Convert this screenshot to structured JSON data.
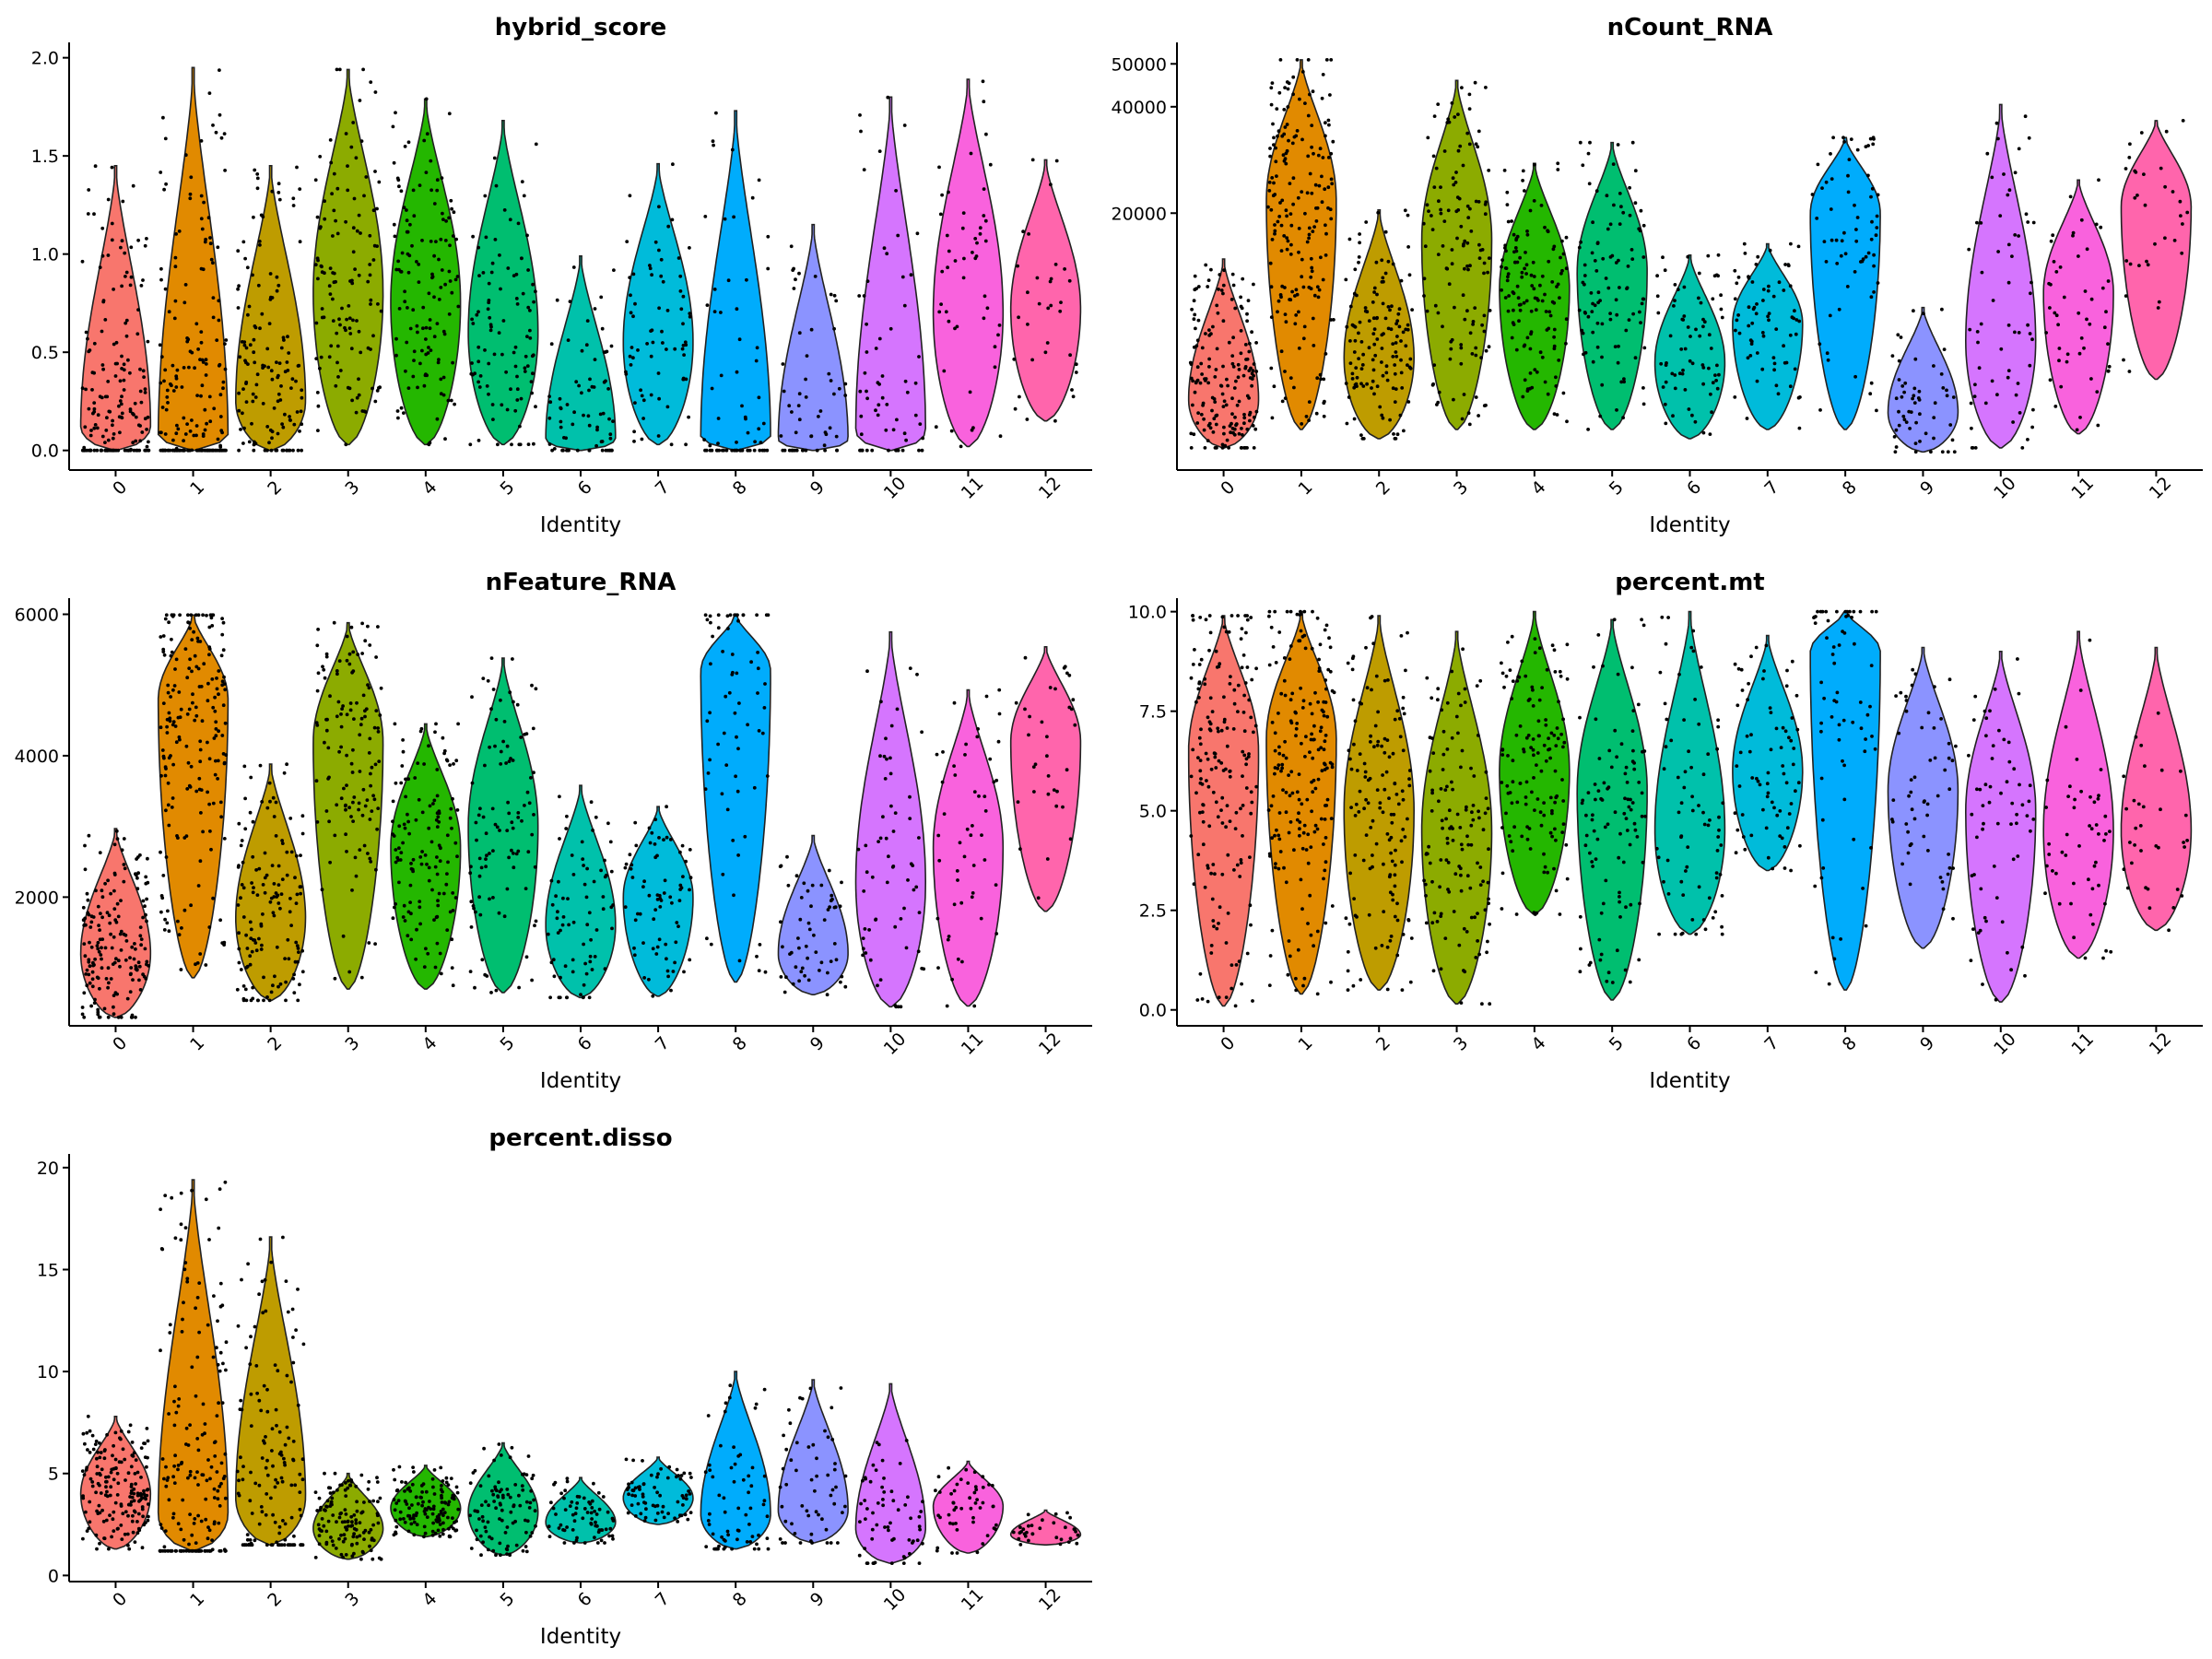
{
  "chart_data": [
    {
      "type": "violin",
      "title": "hybrid_score",
      "xlabel": "Identity",
      "ylabel": "",
      "categories": [
        "0",
        "1",
        "2",
        "3",
        "4",
        "5",
        "6",
        "7",
        "8",
        "9",
        "10",
        "11",
        "12"
      ],
      "ylim": [
        -0.1,
        2.05
      ],
      "yticks": [
        0.0,
        0.5,
        1.0,
        1.5,
        2.0
      ],
      "ytick_labels": [
        "0.0",
        "0.5",
        "1.0",
        "1.5",
        "2.0"
      ],
      "series": [
        {
          "name": "0",
          "min": 0.0,
          "max": 1.45,
          "median": 0.13,
          "mode": 0.12,
          "n": 320
        },
        {
          "name": "1",
          "min": 0.0,
          "max": 1.95,
          "median": 0.06,
          "mode": 0.05,
          "n": 350
        },
        {
          "name": "2",
          "min": 0.0,
          "max": 1.45,
          "median": 0.27,
          "mode": 0.25,
          "n": 250
        },
        {
          "name": "3",
          "min": 0.03,
          "max": 1.94,
          "median": 0.8,
          "mode": 0.8,
          "n": 230
        },
        {
          "name": "4",
          "min": 0.03,
          "max": 1.79,
          "median": 0.65,
          "mode": 0.75,
          "n": 240
        },
        {
          "name": "5",
          "min": 0.03,
          "max": 1.68,
          "median": 0.6,
          "mode": 0.6,
          "n": 180
        },
        {
          "name": "6",
          "min": 0.0,
          "max": 0.99,
          "median": 0.07,
          "mode": 0.06,
          "n": 130
        },
        {
          "name": "7",
          "min": 0.03,
          "max": 1.46,
          "median": 0.55,
          "mode": 0.55,
          "n": 130
        },
        {
          "name": "8",
          "min": 0.0,
          "max": 1.73,
          "median": 0.06,
          "mode": 0.06,
          "n": 120
        },
        {
          "name": "9",
          "min": 0.0,
          "max": 1.15,
          "median": 0.05,
          "mode": 0.05,
          "n": 100
        },
        {
          "name": "10",
          "min": 0.0,
          "max": 1.8,
          "median": 0.15,
          "mode": 0.1,
          "n": 110
        },
        {
          "name": "11",
          "min": 0.02,
          "max": 1.89,
          "median": 0.7,
          "mode": 0.7,
          "n": 90
        },
        {
          "name": "12",
          "min": 0.15,
          "max": 1.48,
          "median": 0.7,
          "mode": 0.72,
          "n": 60
        }
      ]
    },
    {
      "type": "violin",
      "title": "nCount_RNA",
      "xlabel": "Identity",
      "ylabel": "",
      "scale": "sqrt",
      "categories": [
        "0",
        "1",
        "2",
        "3",
        "4",
        "5",
        "6",
        "7",
        "8",
        "9",
        "10",
        "11",
        "12"
      ],
      "ylim": [
        0,
        54000
      ],
      "yticks": [
        20000,
        40000,
        50000
      ],
      "ytick_labels": [
        "20000",
        "40000",
        "50000"
      ],
      "series": [
        {
          "name": "0",
          "min": 150,
          "max": 13500,
          "median": 2000,
          "mode": 1500,
          "n": 320
        },
        {
          "name": "1",
          "min": 500,
          "max": 51000,
          "median": 22000,
          "mode": 22000,
          "n": 350
        },
        {
          "name": "2",
          "min": 300,
          "max": 20500,
          "median": 4000,
          "mode": 3800,
          "n": 250
        },
        {
          "name": "3",
          "min": 500,
          "max": 46000,
          "median": 17000,
          "mode": 16000,
          "n": 230
        },
        {
          "name": "4",
          "min": 500,
          "max": 28500,
          "median": 9500,
          "mode": 10000,
          "n": 240
        },
        {
          "name": "5",
          "min": 500,
          "max": 32500,
          "median": 11500,
          "mode": 12000,
          "n": 180
        },
        {
          "name": "6",
          "min": 300,
          "max": 14000,
          "median": 4000,
          "mode": 3500,
          "n": 130
        },
        {
          "name": "7",
          "min": 500,
          "max": 15500,
          "median": 6500,
          "mode": 6500,
          "n": 130
        },
        {
          "name": "8",
          "min": 500,
          "max": 33500,
          "median": 17000,
          "mode": 20000,
          "n": 120
        },
        {
          "name": "9",
          "min": 100,
          "max": 8000,
          "median": 1200,
          "mode": 1000,
          "n": 100
        },
        {
          "name": "10",
          "min": 150,
          "max": 40500,
          "median": 7000,
          "mode": 5000,
          "n": 110
        },
        {
          "name": "11",
          "min": 400,
          "max": 25500,
          "median": 9500,
          "mode": 9500,
          "n": 90
        },
        {
          "name": "12",
          "min": 2500,
          "max": 37000,
          "median": 21000,
          "mode": 21000,
          "n": 60
        }
      ]
    },
    {
      "type": "violin",
      "title": "nFeature_RNA",
      "xlabel": "Identity",
      "ylabel": "",
      "categories": [
        "0",
        "1",
        "2",
        "3",
        "4",
        "5",
        "6",
        "7",
        "8",
        "9",
        "10",
        "11",
        "12"
      ],
      "ylim": [
        180,
        6150
      ],
      "yticks": [
        2000,
        4000,
        6000
      ],
      "ytick_labels": [
        "2000",
        "4000",
        "6000"
      ],
      "series": [
        {
          "name": "0",
          "min": 300,
          "max": 2970,
          "median": 1300,
          "mode": 1200,
          "n": 320
        },
        {
          "name": "1",
          "min": 860,
          "max": 5990,
          "median": 4500,
          "mode": 4800,
          "n": 350
        },
        {
          "name": "2",
          "min": 540,
          "max": 3880,
          "median": 1700,
          "mode": 1700,
          "n": 250
        },
        {
          "name": "3",
          "min": 700,
          "max": 5880,
          "median": 4000,
          "mode": 4200,
          "n": 230
        },
        {
          "name": "4",
          "min": 700,
          "max": 4450,
          "median": 2600,
          "mode": 2700,
          "n": 240
        },
        {
          "name": "5",
          "min": 650,
          "max": 5380,
          "median": 2900,
          "mode": 3000,
          "n": 180
        },
        {
          "name": "6",
          "min": 580,
          "max": 3580,
          "median": 1600,
          "mode": 1600,
          "n": 130
        },
        {
          "name": "7",
          "min": 600,
          "max": 3280,
          "median": 2000,
          "mode": 2000,
          "n": 130
        },
        {
          "name": "8",
          "min": 800,
          "max": 5990,
          "median": 5000,
          "mode": 5200,
          "n": 120
        },
        {
          "name": "9",
          "min": 620,
          "max": 2870,
          "median": 1200,
          "mode": 1200,
          "n": 100
        },
        {
          "name": "10",
          "min": 450,
          "max": 5750,
          "median": 2100,
          "mode": 2200,
          "n": 110
        },
        {
          "name": "11",
          "min": 460,
          "max": 4930,
          "median": 2700,
          "mode": 2700,
          "n": 90
        },
        {
          "name": "12",
          "min": 1800,
          "max": 5540,
          "median": 4100,
          "mode": 4200,
          "n": 60
        }
      ]
    },
    {
      "type": "violin",
      "title": "percent.mt",
      "xlabel": "Identity",
      "ylabel": "",
      "categories": [
        "0",
        "1",
        "2",
        "3",
        "4",
        "5",
        "6",
        "7",
        "8",
        "9",
        "10",
        "11",
        "12"
      ],
      "ylim": [
        -0.4,
        10.2
      ],
      "yticks": [
        0.0,
        2.5,
        5.0,
        7.5,
        10.0
      ],
      "ytick_labels": [
        "0.0",
        "2.5",
        "5.0",
        "7.5",
        "10.0"
      ],
      "series": [
        {
          "name": "0",
          "min": 0.1,
          "max": 9.9,
          "median": 6.3,
          "mode": 6.5,
          "n": 320
        },
        {
          "name": "1",
          "min": 0.4,
          "max": 10.0,
          "median": 6.5,
          "mode": 6.8,
          "n": 350
        },
        {
          "name": "2",
          "min": 0.5,
          "max": 9.9,
          "median": 5.0,
          "mode": 5.0,
          "n": 250
        },
        {
          "name": "3",
          "min": 0.15,
          "max": 9.5,
          "median": 4.5,
          "mode": 4.5,
          "n": 230
        },
        {
          "name": "4",
          "min": 2.4,
          "max": 10.0,
          "median": 5.8,
          "mode": 6.0,
          "n": 240
        },
        {
          "name": "5",
          "min": 0.25,
          "max": 9.8,
          "median": 5.5,
          "mode": 5.5,
          "n": 180
        },
        {
          "name": "6",
          "min": 1.9,
          "max": 10.0,
          "median": 4.5,
          "mode": 4.5,
          "n": 130
        },
        {
          "name": "7",
          "min": 3.5,
          "max": 9.4,
          "median": 6.0,
          "mode": 6.0,
          "n": 130
        },
        {
          "name": "8",
          "min": 0.5,
          "max": 10.0,
          "median": 8.0,
          "mode": 9.0,
          "n": 120
        },
        {
          "name": "9",
          "min": 1.55,
          "max": 9.1,
          "median": 5.5,
          "mode": 5.5,
          "n": 100
        },
        {
          "name": "10",
          "min": 0.2,
          "max": 9.0,
          "median": 5.0,
          "mode": 5.0,
          "n": 110
        },
        {
          "name": "11",
          "min": 1.3,
          "max": 9.5,
          "median": 4.5,
          "mode": 4.5,
          "n": 90
        },
        {
          "name": "12",
          "min": 2.0,
          "max": 9.1,
          "median": 4.5,
          "mode": 4.5,
          "n": 60
        }
      ]
    },
    {
      "type": "violin",
      "title": "percent.disso",
      "xlabel": "Identity",
      "ylabel": "",
      "categories": [
        "0",
        "1",
        "2",
        "3",
        "4",
        "5",
        "6",
        "7",
        "8",
        "9",
        "10",
        "11",
        "12"
      ],
      "ylim": [
        -0.3,
        20.4
      ],
      "yticks": [
        0,
        5,
        10,
        15,
        20
      ],
      "ytick_labels": [
        "0",
        "5",
        "10",
        "15",
        "20"
      ],
      "series": [
        {
          "name": "0",
          "min": 1.3,
          "max": 7.8,
          "median": 4.0,
          "mode": 4.0,
          "n": 320
        },
        {
          "name": "1",
          "min": 1.2,
          "max": 19.4,
          "median": 3.0,
          "mode": 3.0,
          "n": 350
        },
        {
          "name": "2",
          "min": 1.5,
          "max": 16.6,
          "median": 3.8,
          "mode": 3.8,
          "n": 250
        },
        {
          "name": "3",
          "min": 0.8,
          "max": 5.0,
          "median": 2.3,
          "mode": 2.3,
          "n": 230
        },
        {
          "name": "4",
          "min": 1.9,
          "max": 5.4,
          "median": 3.3,
          "mode": 3.3,
          "n": 240
        },
        {
          "name": "5",
          "min": 1.0,
          "max": 6.5,
          "median": 3.1,
          "mode": 3.1,
          "n": 180
        },
        {
          "name": "6",
          "min": 1.6,
          "max": 4.8,
          "median": 2.6,
          "mode": 2.6,
          "n": 130
        },
        {
          "name": "7",
          "min": 2.5,
          "max": 5.8,
          "median": 3.8,
          "mode": 3.8,
          "n": 130
        },
        {
          "name": "8",
          "min": 1.3,
          "max": 10.0,
          "median": 3.5,
          "mode": 3.0,
          "n": 120
        },
        {
          "name": "9",
          "min": 1.6,
          "max": 9.6,
          "median": 3.3,
          "mode": 3.2,
          "n": 100
        },
        {
          "name": "10",
          "min": 0.6,
          "max": 9.4,
          "median": 2.5,
          "mode": 2.3,
          "n": 110
        },
        {
          "name": "11",
          "min": 1.1,
          "max": 5.6,
          "median": 3.3,
          "mode": 3.4,
          "n": 90
        },
        {
          "name": "12",
          "min": 1.5,
          "max": 3.2,
          "median": 2.0,
          "mode": 2.0,
          "n": 60
        }
      ]
    }
  ],
  "palette": [
    "#F8766D",
    "#E18A00",
    "#BE9C00",
    "#8CAB00",
    "#24B700",
    "#00BE70",
    "#00C1AB",
    "#00BBDA",
    "#00ACFC",
    "#8B93FF",
    "#D575FE",
    "#F962DD",
    "#FF65AC"
  ]
}
